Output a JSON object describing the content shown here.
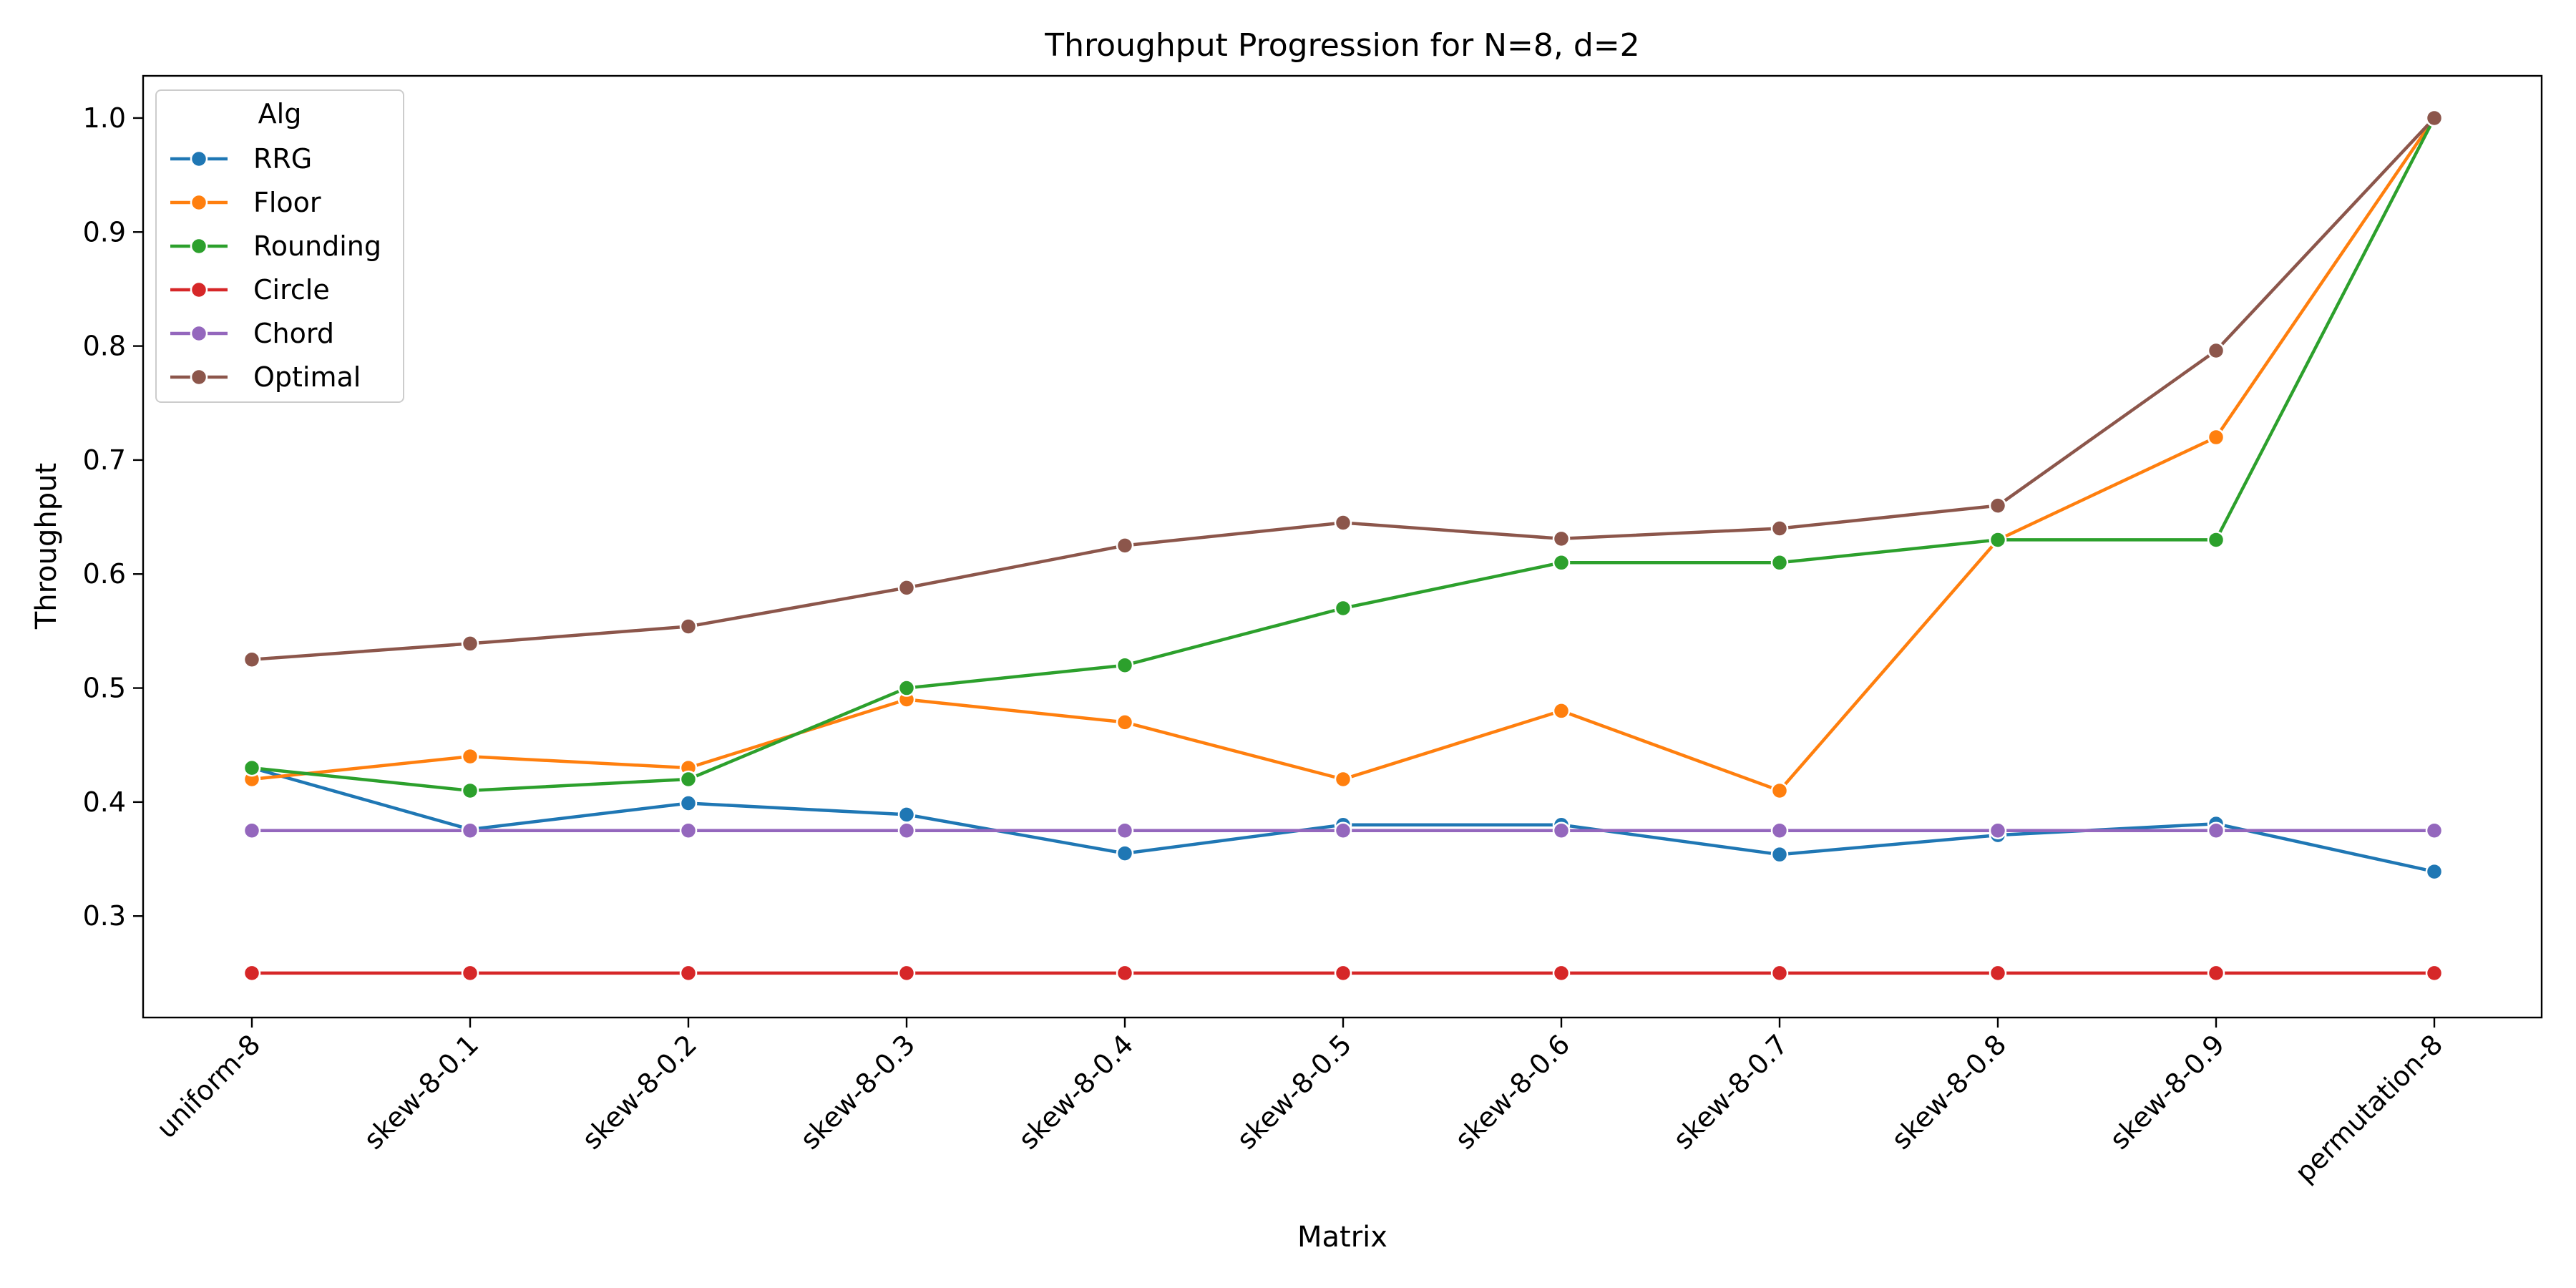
{
  "chart_data": {
    "type": "line",
    "title": "Throughput Progression for N=8, d=2",
    "xlabel": "Matrix",
    "ylabel": "Throughput",
    "ylim": [
      0.211,
      1.037
    ],
    "yticks": [
      0.3,
      0.4,
      0.5,
      0.6,
      0.7,
      0.8,
      0.9,
      1.0
    ],
    "ytick_labels": [
      "0.3",
      "0.4",
      "0.5",
      "0.6",
      "0.7",
      "0.8",
      "0.9",
      "1.0"
    ],
    "categories": [
      "uniform-8",
      "skew-8-0.1",
      "skew-8-0.2",
      "skew-8-0.3",
      "skew-8-0.4",
      "skew-8-0.5",
      "skew-8-0.6",
      "skew-8-0.7",
      "skew-8-0.8",
      "skew-8-0.9",
      "permutation-8"
    ],
    "grid": false,
    "legend": {
      "title": "Alg",
      "placement": "upper-left"
    },
    "series": [
      {
        "name": "RRG",
        "color": "#1f77b4",
        "values": [
          0.43,
          0.376,
          0.399,
          0.389,
          0.355,
          0.38,
          0.38,
          0.354,
          0.371,
          0.381,
          0.339
        ]
      },
      {
        "name": "Floor",
        "color": "#ff7f0e",
        "values": [
          0.42,
          0.44,
          0.43,
          0.49,
          0.47,
          0.42,
          0.48,
          0.41,
          0.63,
          0.72,
          1.0
        ]
      },
      {
        "name": "Rounding",
        "color": "#2ca02c",
        "values": [
          0.43,
          0.41,
          0.42,
          0.5,
          0.52,
          0.57,
          0.61,
          0.61,
          0.63,
          0.63,
          1.0
        ]
      },
      {
        "name": "Circle",
        "color": "#d62728",
        "values": [
          0.25,
          0.25,
          0.25,
          0.25,
          0.25,
          0.25,
          0.25,
          0.25,
          0.25,
          0.25,
          0.25
        ]
      },
      {
        "name": "Chord",
        "color": "#9467bd",
        "values": [
          0.375,
          0.375,
          0.375,
          0.375,
          0.375,
          0.375,
          0.375,
          0.375,
          0.375,
          0.375,
          0.375
        ]
      },
      {
        "name": "Optimal",
        "color": "#8c564b",
        "values": [
          0.525,
          0.539,
          0.554,
          0.588,
          0.625,
          0.645,
          0.631,
          0.64,
          0.66,
          0.796,
          1.0
        ]
      }
    ]
  }
}
